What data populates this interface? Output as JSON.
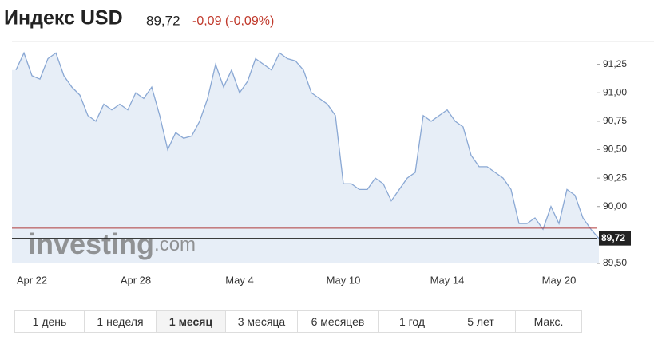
{
  "header": {
    "title": "Индекс USD",
    "change": "-0,09 (-0,09%)"
  },
  "chart_data": {
    "type": "line",
    "categories": [
      null,
      null,
      "Apr 22",
      null,
      null,
      null,
      null,
      null,
      null,
      null,
      null,
      null,
      null,
      null,
      null,
      "Apr 28",
      null,
      null,
      null,
      null,
      null,
      null,
      null,
      null,
      null,
      null,
      null,
      null,
      "May 4",
      null,
      null,
      null,
      null,
      null,
      null,
      null,
      null,
      null,
      null,
      null,
      null,
      "May 10",
      null,
      null,
      null,
      null,
      null,
      null,
      null,
      null,
      null,
      null,
      null,
      null,
      "May 14",
      null,
      null,
      null,
      null,
      null,
      null,
      null,
      null,
      null,
      null,
      null,
      null,
      null,
      "May 20",
      null,
      null,
      null,
      null,
      null
    ],
    "values": [
      91.2,
      91.35,
      91.15,
      91.12,
      91.3,
      91.35,
      91.15,
      91.05,
      90.98,
      90.8,
      90.75,
      90.9,
      90.85,
      90.9,
      90.85,
      91.0,
      90.95,
      91.05,
      90.8,
      90.5,
      90.65,
      90.6,
      90.62,
      90.75,
      90.95,
      91.25,
      91.05,
      91.2,
      91.0,
      91.1,
      91.3,
      91.25,
      91.2,
      91.35,
      91.3,
      91.28,
      91.2,
      91.0,
      90.95,
      90.9,
      90.8,
      90.2,
      90.2,
      90.15,
      90.15,
      90.25,
      90.2,
      90.05,
      90.15,
      90.25,
      90.3,
      90.8,
      90.75,
      90.8,
      90.85,
      90.75,
      90.7,
      90.45,
      90.35,
      90.35,
      90.3,
      90.25,
      90.15,
      89.85,
      89.85,
      89.9,
      89.8,
      90.0,
      89.85,
      90.15,
      90.1,
      89.9,
      89.8,
      89.72
    ],
    "color": "#8aa8d4",
    "ylim": [
      89.5,
      91.43
    ],
    "yticks": [
      {
        "value": 89.5,
        "label": "89,50"
      },
      {
        "value": 90.0,
        "label": "90,00"
      },
      {
        "value": 90.25,
        "label": "90,25"
      },
      {
        "value": 90.5,
        "label": "90,50"
      },
      {
        "value": 90.75,
        "label": "90,75"
      },
      {
        "value": 91.0,
        "label": "91,00"
      },
      {
        "value": 91.25,
        "label": "91,25"
      }
    ],
    "last_price": {
      "value": 89.72,
      "label": "89,72"
    },
    "prev_close": 89.81,
    "watermark": [
      "investing",
      ".com"
    ]
  },
  "ranges": [
    "1 день",
    "1 неделя",
    "1 месяц",
    "3 месяца",
    "6 месяцев",
    "1 год",
    "5 лет",
    "Макс."
  ],
  "active_range": 2
}
